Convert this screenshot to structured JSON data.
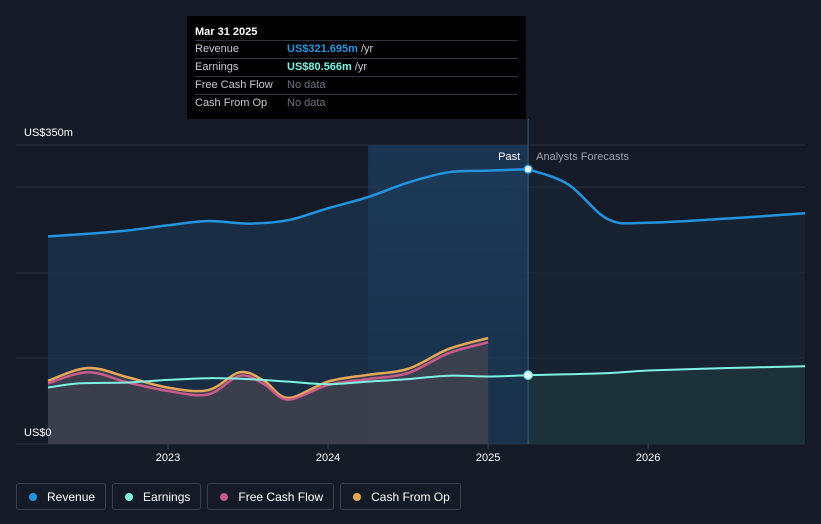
{
  "chart_data": {
    "type": "line",
    "y_max_label": "US$350m",
    "y_min_label": "US$0",
    "ylim": [
      0,
      350
    ],
    "xlim": [
      2022.25,
      2026.98
    ],
    "x_ticks": [
      2023,
      2024,
      2025,
      2026
    ],
    "x_tick_labels": [
      "2023",
      "2024",
      "2025",
      "2026"
    ],
    "past_label": "Past",
    "forecast_label": "Analysts Forecasts",
    "divider_x": 2025.25,
    "highlight_start_x": 2024.25,
    "series": [
      {
        "name": "Revenue",
        "color": "#2394df",
        "points": [
          [
            2022.25,
            243
          ],
          [
            2022.5,
            246
          ],
          [
            2022.75,
            250
          ],
          [
            2023.0,
            256
          ],
          [
            2023.25,
            261
          ],
          [
            2023.5,
            258
          ],
          [
            2023.75,
            262
          ],
          [
            2024.0,
            276
          ],
          [
            2024.25,
            289
          ],
          [
            2024.5,
            306
          ],
          [
            2024.75,
            318
          ],
          [
            2025.0,
            320
          ],
          [
            2025.25,
            321.695
          ]
        ],
        "forecast": [
          [
            2025.25,
            321.695
          ],
          [
            2025.5,
            304
          ],
          [
            2025.75,
            263
          ],
          [
            2026.0,
            259
          ],
          [
            2026.5,
            264
          ],
          [
            2026.98,
            270
          ]
        ]
      },
      {
        "name": "Earnings",
        "color": "#7ff3e3",
        "points": [
          [
            2022.25,
            66
          ],
          [
            2022.45,
            71
          ],
          [
            2022.75,
            72
          ],
          [
            2023.0,
            75
          ],
          [
            2023.25,
            77
          ],
          [
            2023.5,
            76
          ],
          [
            2023.75,
            73
          ],
          [
            2024.0,
            70
          ],
          [
            2024.25,
            73
          ],
          [
            2024.5,
            76
          ],
          [
            2024.75,
            80
          ],
          [
            2025.0,
            79
          ],
          [
            2025.25,
            80.566
          ]
        ],
        "forecast": [
          [
            2025.25,
            80.566
          ],
          [
            2025.75,
            83
          ],
          [
            2026.0,
            86
          ],
          [
            2026.5,
            89
          ],
          [
            2026.98,
            91
          ]
        ]
      },
      {
        "name": "Free Cash Flow",
        "color": "#c85a8c",
        "points": [
          [
            2022.25,
            71
          ],
          [
            2022.5,
            84
          ],
          [
            2022.75,
            72
          ],
          [
            2023.0,
            62
          ],
          [
            2023.25,
            58
          ],
          [
            2023.45,
            80
          ],
          [
            2023.6,
            70
          ],
          [
            2023.75,
            52
          ],
          [
            2024.0,
            69
          ],
          [
            2024.25,
            76
          ],
          [
            2024.5,
            83
          ],
          [
            2024.75,
            106
          ],
          [
            2025.0,
            119
          ]
        ],
        "forecast": []
      },
      {
        "name": "Cash From Op",
        "color": "#e8a85a",
        "points": [
          [
            2022.25,
            74
          ],
          [
            2022.5,
            89
          ],
          [
            2022.75,
            78
          ],
          [
            2023.0,
            66
          ],
          [
            2023.25,
            63
          ],
          [
            2023.45,
            84
          ],
          [
            2023.6,
            74
          ],
          [
            2023.75,
            54
          ],
          [
            2024.0,
            73
          ],
          [
            2024.25,
            81
          ],
          [
            2024.5,
            88
          ],
          [
            2024.75,
            111
          ],
          [
            2025.0,
            124
          ]
        ],
        "forecast": []
      }
    ]
  },
  "tooltip": {
    "date": "Mar 31 2025",
    "rows": [
      {
        "label": "Revenue",
        "value": "US$321.695m",
        "unit": "/yr"
      },
      {
        "label": "Earnings",
        "value": "US$80.566m",
        "unit": "/yr"
      },
      {
        "label": "Free Cash Flow",
        "value": "No data"
      },
      {
        "label": "Cash From Op",
        "value": "No data"
      }
    ]
  },
  "legend": [
    {
      "label": "Revenue",
      "color": "#2394df"
    },
    {
      "label": "Earnings",
      "color": "#7ff3e3"
    },
    {
      "label": "Free Cash Flow",
      "color": "#c85a8c"
    },
    {
      "label": "Cash From Op",
      "color": "#e8a85a"
    }
  ]
}
